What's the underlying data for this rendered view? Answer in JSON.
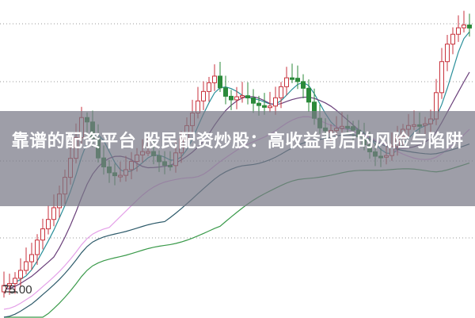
{
  "chart": {
    "price_label": "75.00",
    "colors": {
      "up": "#c8323c",
      "down": "#2b8a3a",
      "ma": [
        "#2a8f9a",
        "#6a3f7a",
        "#e4a0e8",
        "#3a9a4a",
        "#2d5a6a"
      ]
    }
  },
  "article": {
    "title": "靠谱的配资平台 股民配资炒股：高收益背后的风险与陷阱"
  }
}
